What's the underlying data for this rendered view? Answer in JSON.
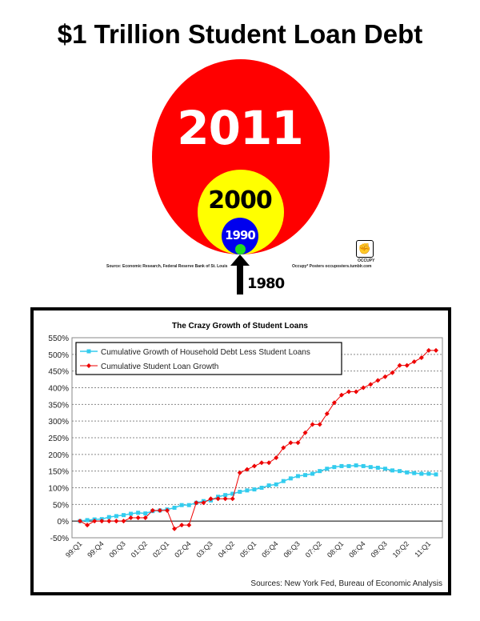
{
  "poster": {
    "title": "$1 Trillion Student Loan Debt",
    "circles": [
      {
        "year": "2011",
        "color": "#ff0000"
      },
      {
        "year": "2000",
        "color": "#ffff00"
      },
      {
        "year": "1990",
        "color": "#0000ff"
      },
      {
        "year": "1980",
        "color": "#00dd00"
      }
    ],
    "source": "Source: Economic Research, Federal Reserve Bank of St. Louis",
    "credit": "Occupy* Posters   occuposters.tumblr.com",
    "logo_label": "OCCUPY"
  },
  "chart_data": {
    "type": "line",
    "title": "The Crazy Growth of Student Loans",
    "xlabel": "",
    "ylabel": "",
    "ylim": [
      -50,
      550
    ],
    "yticks": [
      "550%",
      "500%",
      "450%",
      "400%",
      "350%",
      "300%",
      "250%",
      "200%",
      "150%",
      "100%",
      "50%",
      "0%",
      "-50%"
    ],
    "ytick_values": [
      550,
      500,
      450,
      400,
      350,
      300,
      250,
      200,
      150,
      100,
      50,
      0,
      -50
    ],
    "xtick_labels": [
      "99:Q1",
      "99:Q4",
      "00:Q3",
      "01:Q2",
      "02:Q1",
      "02:Q4",
      "03:Q3",
      "04:Q2",
      "05:Q1",
      "05:Q4",
      "06:Q3",
      "07:Q2",
      "08:Q1",
      "08:Q4",
      "09:Q3",
      "10:Q2",
      "11:Q1"
    ],
    "xtick_step": 3,
    "n_points": 50,
    "grid": "horizontal dotted",
    "legend_position": "top-left",
    "series": [
      {
        "name": "Cumulative Growth of Household Debt Less Student Loans",
        "color": "#33ccee",
        "marker": "square",
        "values": [
          0,
          3,
          5,
          6,
          12,
          15,
          18,
          22,
          25,
          23,
          30,
          32,
          35,
          40,
          48,
          48,
          55,
          60,
          62,
          73,
          78,
          82,
          88,
          92,
          95,
          100,
          107,
          110,
          120,
          128,
          135,
          138,
          142,
          150,
          157,
          162,
          165,
          165,
          167,
          165,
          162,
          160,
          157,
          152,
          150,
          146,
          144,
          142,
          142,
          140
        ]
      },
      {
        "name": "Cumulative Student Loan Growth",
        "color": "#ee0000",
        "marker": "diamond",
        "values": [
          0,
          -12,
          0,
          0,
          0,
          0,
          0,
          10,
          10,
          10,
          32,
          32,
          32,
          -23,
          -12,
          -12,
          55,
          55,
          67,
          67,
          67,
          67,
          145,
          155,
          165,
          175,
          175,
          190,
          220,
          235,
          235,
          265,
          290,
          290,
          322,
          355,
          378,
          388,
          388,
          400,
          410,
          422,
          433,
          445,
          467,
          467,
          478,
          490,
          512,
          512
        ]
      }
    ],
    "source": "Sources: New York Fed, Bureau of Economic Analysis"
  }
}
